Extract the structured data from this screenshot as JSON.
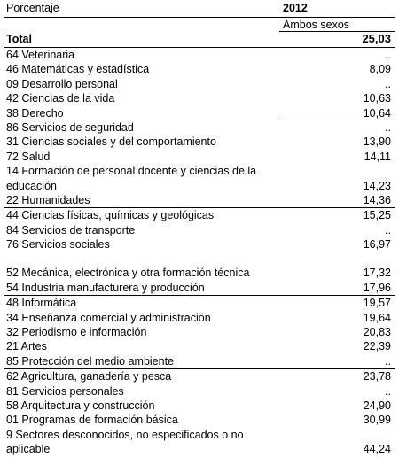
{
  "header": {
    "label": "Porcentaje",
    "year": "2012",
    "sex": "Ambos sexos"
  },
  "total": {
    "name": "Total",
    "value": "25,03"
  },
  "groups": [
    [
      {
        "name": "64 Veterinaria",
        "value": ".."
      },
      {
        "name": "46 Matemáticas y estadística",
        "value": "8,09"
      },
      {
        "name": "09 Desarrollo personal",
        "value": ".."
      },
      {
        "name": "42 Ciencias de la vida",
        "value": "10,63"
      },
      {
        "name": "38 Derecho",
        "value": "10,64"
      }
    ],
    [
      {
        "name": "86 Servicios de seguridad",
        "value": ".."
      },
      {
        "name": "31 Ciencias sociales y del comportamiento",
        "value": "13,90"
      },
      {
        "name": "72 Salud",
        "value": "14,11"
      },
      {
        "name": "14 Formación de personal docente y ciencias de la educación",
        "value": "14,23"
      },
      {
        "name": "22 Humanidades",
        "value": "14,36"
      }
    ],
    [
      {
        "name": "44 Ciencias físicas, químicas y geológicas",
        "value": "15,25"
      },
      {
        "name": "84 Servicios de transporte",
        "value": ".."
      },
      {
        "name": "76 Servicios sociales",
        "value": "16,97"
      },
      {
        "name": "",
        "value": ""
      },
      {
        "name": "52 Mecánica, electrónica y otra formación técnica",
        "value": "17,32"
      },
      {
        "name": "54 Industria manufacturera y producción",
        "value": "17,96"
      }
    ],
    [
      {
        "name": "48 Informática",
        "value": "19,57"
      },
      {
        "name": "34 Enseñanza comercial y administración",
        "value": "19,64"
      },
      {
        "name": "32 Periodismo e información",
        "value": "20,83"
      },
      {
        "name": "21 Artes",
        "value": "22,39"
      },
      {
        "name": "85 Protección del medio ambiente",
        "value": ".."
      }
    ],
    [
      {
        "name": "62 Agricultura, ganadería y pesca",
        "value": "23,78"
      },
      {
        "name": "81 Servicios personales",
        "value": ".."
      },
      {
        "name": "58 Arquitectura y construcción",
        "value": "24,90"
      },
      {
        "name": "01 Programas de formación básica",
        "value": "30,99"
      },
      {
        "name": "9 Sectores desconocidos, no especificados o no aplicable",
        "value": "44,24"
      }
    ]
  ]
}
